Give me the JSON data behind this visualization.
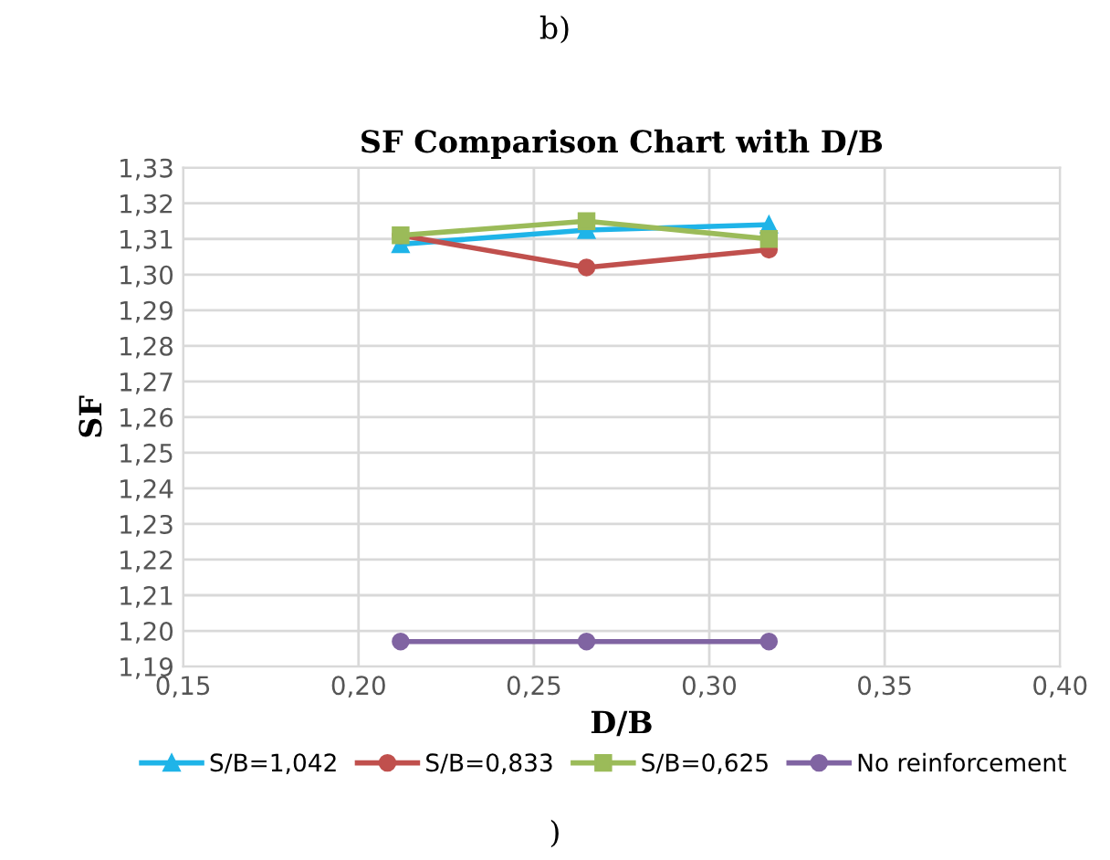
{
  "chart_data": {
    "type": "line",
    "title": "SF Comparison Chart with D/B",
    "xlabel": "D/B",
    "ylabel": "SF",
    "annotations": [
      "b)",
      ")"
    ],
    "x": [
      0.212,
      0.265,
      0.317
    ],
    "series": [
      {
        "name": "S/B=1,042",
        "color": "#1fb4e8",
        "marker": "triangle",
        "values": [
          1.3085,
          1.3125,
          1.314
        ]
      },
      {
        "name": "S/B=0,833",
        "color": "#c0504d",
        "marker": "circle",
        "values": [
          1.311,
          1.302,
          1.307
        ]
      },
      {
        "name": "S/B=0,625",
        "color": "#9bbb59",
        "marker": "square",
        "values": [
          1.311,
          1.315,
          1.31
        ]
      },
      {
        "name": "No reinforcement",
        "color": "#8064a2",
        "marker": "circle",
        "values": [
          1.197,
          1.197,
          1.197
        ]
      }
    ],
    "xlim": [
      0.15,
      0.4
    ],
    "xticks": [
      {
        "value": 0.15,
        "label": "0,15"
      },
      {
        "value": 0.2,
        "label": "0,20"
      },
      {
        "value": 0.25,
        "label": "0,25"
      },
      {
        "value": 0.3,
        "label": "0,30"
      },
      {
        "value": 0.35,
        "label": "0,35"
      },
      {
        "value": 0.4,
        "label": "0,40"
      }
    ],
    "ylim": [
      1.19,
      1.33
    ],
    "yticks": [
      {
        "value": 1.19,
        "label": "1,19"
      },
      {
        "value": 1.2,
        "label": "1,20"
      },
      {
        "value": 1.21,
        "label": "1,21"
      },
      {
        "value": 1.22,
        "label": "1,22"
      },
      {
        "value": 1.23,
        "label": "1,23"
      },
      {
        "value": 1.24,
        "label": "1,24"
      },
      {
        "value": 1.25,
        "label": "1,25"
      },
      {
        "value": 1.26,
        "label": "1,26"
      },
      {
        "value": 1.27,
        "label": "1,27"
      },
      {
        "value": 1.28,
        "label": "1,28"
      },
      {
        "value": 1.29,
        "label": "1,29"
      },
      {
        "value": 1.3,
        "label": "1,30"
      },
      {
        "value": 1.31,
        "label": "1,31"
      },
      {
        "value": 1.32,
        "label": "1,32"
      },
      {
        "value": 1.33,
        "label": "1,33"
      }
    ],
    "grid": true,
    "legend": "bottom",
    "line_style": "solid"
  }
}
